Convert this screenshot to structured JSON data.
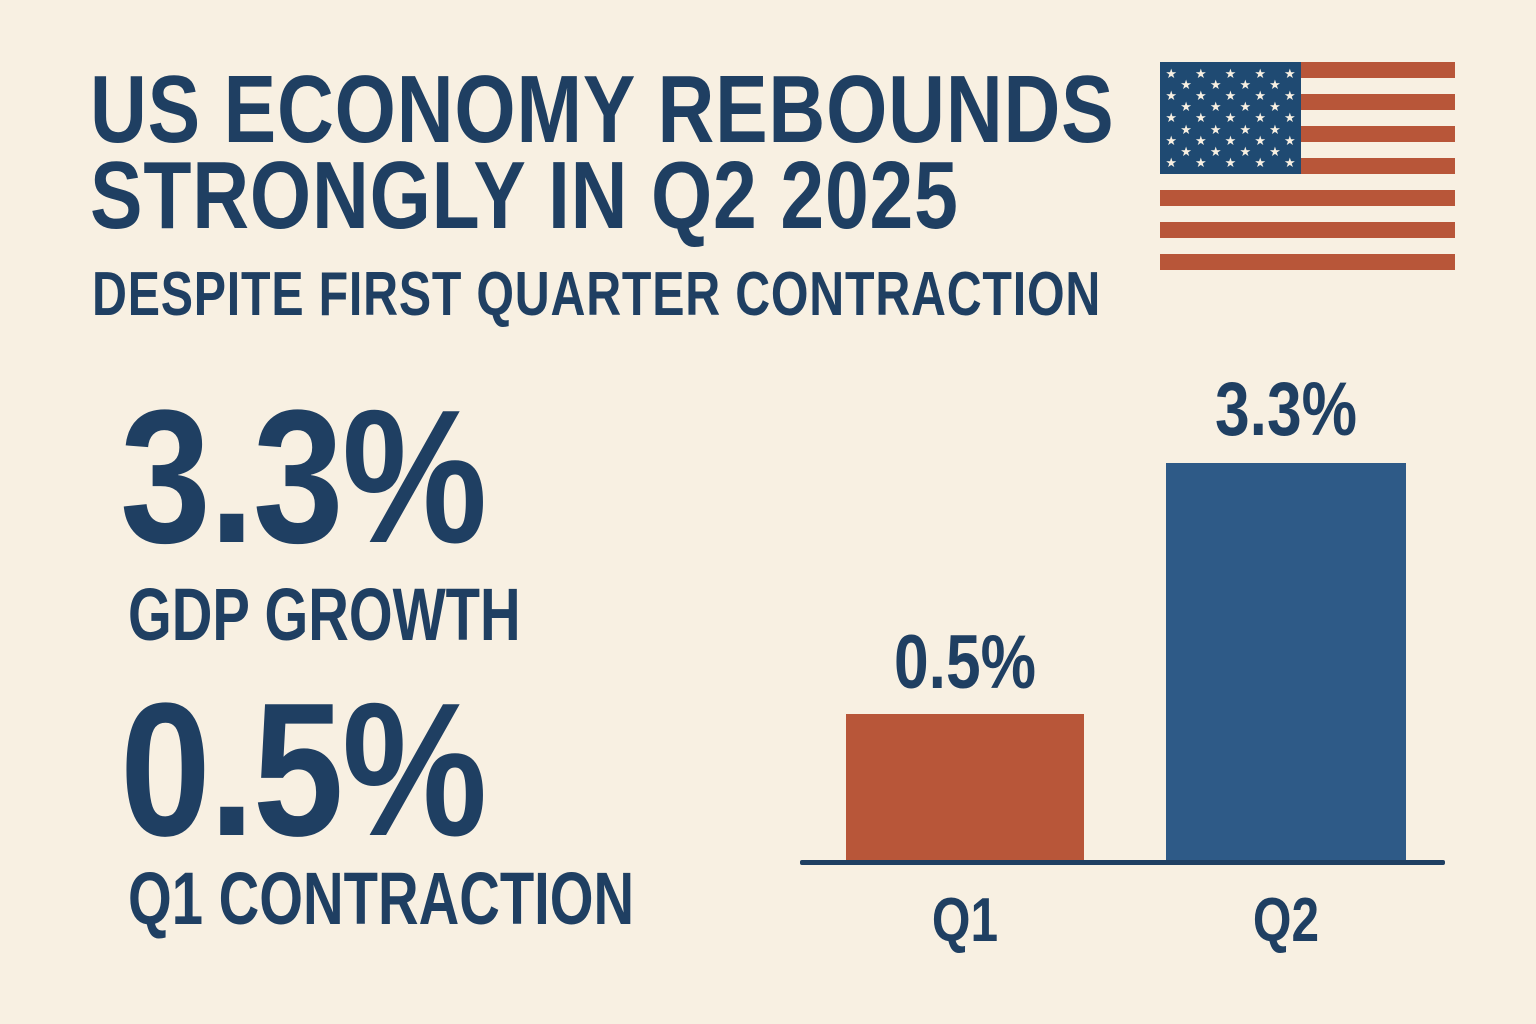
{
  "headline": {
    "line1": "US ECONOMY REBOUNDS",
    "line2": "STRONGLY IN Q2 2025",
    "subtitle": "DESPITE FIRST QUARTER CONTRACTION"
  },
  "flag": {
    "icon": "us-flag-icon",
    "star": "★",
    "star_count": 50,
    "stripes_visible": 7
  },
  "stats": [
    {
      "value": "3.3%",
      "label": "GDP GROWTH"
    },
    {
      "value": "0.5%",
      "label": "Q1 CONTRACTION"
    }
  ],
  "colors": {
    "background": "#f8f0e2",
    "navy_text": "#1f3f62",
    "q1_bar": "#b85639",
    "q2_bar": "#2e5a87",
    "flag_canton": "#1f4a72",
    "flag_stripe": "#b85639"
  },
  "chart_data": {
    "type": "bar",
    "title": "",
    "categories": [
      "Q1",
      "Q2"
    ],
    "values": [
      0.5,
      3.3
    ],
    "value_labels": [
      "0.5%",
      "3.3%"
    ],
    "bar_colors": [
      "#b85639",
      "#2e5a87"
    ],
    "xlabel": "",
    "ylabel": "",
    "ylim": [
      0,
      3.5
    ],
    "grid": false,
    "legend": null
  }
}
